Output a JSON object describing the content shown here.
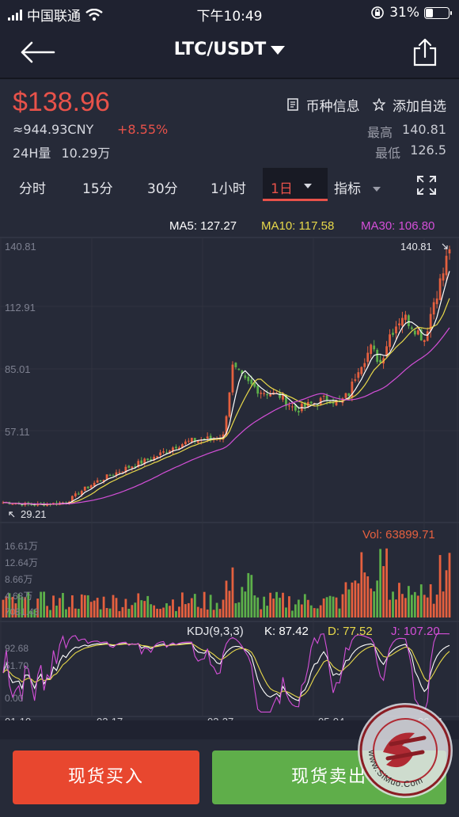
{
  "status_bar": {
    "carrier": "中国联通",
    "time": "下午10:49",
    "battery": "31%",
    "battery_level": 0.31
  },
  "nav": {
    "title": "LTC/USDT"
  },
  "ticker": {
    "price": "$138.96",
    "cny": "≈944.93CNY",
    "change": "+8.55%",
    "volume_label": "24H量",
    "volume_value": "10.29万",
    "coin_info": "币种信息",
    "add_watch": "添加自选",
    "high_label": "最高",
    "high_value": "140.81",
    "low_label": "最低",
    "low_value": "126.5"
  },
  "periods": {
    "tabs": [
      "分时",
      "15分",
      "30分",
      "1小时"
    ],
    "active": "1日",
    "indicator": "指标"
  },
  "chart": {
    "ma5": "MA5: 127.27",
    "ma10": "MA10: 117.58",
    "ma30": "MA30: 106.80",
    "price_ticks": [
      "140.81",
      "112.91",
      "85.01",
      "57.11"
    ],
    "high_mark": "140.81",
    "low_mark": "29.21",
    "volume_label": "Vol: 63899.71",
    "volume_ticks": [
      "16.61万",
      "12.64万",
      "8.66万",
      "4.68万",
      "7081.43"
    ],
    "kdj_label": "KDJ(9,3,3)",
    "kdj_k": "K: 87.42",
    "kdj_d": "D: 77.52",
    "kdj_j": "J: 107.20",
    "kdj_ticks": [
      "92.68",
      "51.70",
      "0.00"
    ],
    "dates": [
      "01-10",
      "02-17",
      "03-27",
      "05-04",
      "06-11"
    ],
    "colors": {
      "up": "#e5603f",
      "down": "#5db04a",
      "ma5": "#ffffff",
      "ma10": "#e8d94a",
      "ma30": "#d44fd8",
      "accent": "#e8524a"
    }
  },
  "chart_data": {
    "type": "candlestick",
    "x_start_label": "01-10",
    "x_end_label": "06-11",
    "ylim": [
      29.21,
      140.81
    ],
    "close_anchors": [
      [
        0,
        31
      ],
      [
        10,
        30
      ],
      [
        20,
        31
      ],
      [
        25,
        36
      ],
      [
        30,
        40
      ],
      [
        40,
        46
      ],
      [
        48,
        50
      ],
      [
        55,
        55
      ],
      [
        60,
        57
      ],
      [
        66,
        58
      ],
      [
        70,
        59
      ],
      [
        73,
        88
      ],
      [
        77,
        82
      ],
      [
        82,
        78
      ],
      [
        88,
        76
      ],
      [
        93,
        70
      ],
      [
        97,
        72
      ],
      [
        103,
        75
      ],
      [
        107,
        73
      ],
      [
        110,
        77
      ],
      [
        113,
        88
      ],
      [
        117,
        96
      ],
      [
        120,
        90
      ],
      [
        123,
        102
      ],
      [
        127,
        110
      ],
      [
        130,
        106
      ],
      [
        134,
        100
      ],
      [
        137,
        116
      ],
      [
        140,
        128
      ],
      [
        142,
        139
      ]
    ],
    "ma_values": {
      "ma5": 127.27,
      "ma10": 117.58,
      "ma30": 106.8
    },
    "volume_last": 63899.71,
    "kdj_last": {
      "K": 87.42,
      "D": 77.52,
      "J": 107.2
    }
  },
  "buttons": {
    "buy": "现货买入",
    "sell": "现货卖出"
  },
  "watermark": {
    "text": "www.SiMuo.Com"
  }
}
